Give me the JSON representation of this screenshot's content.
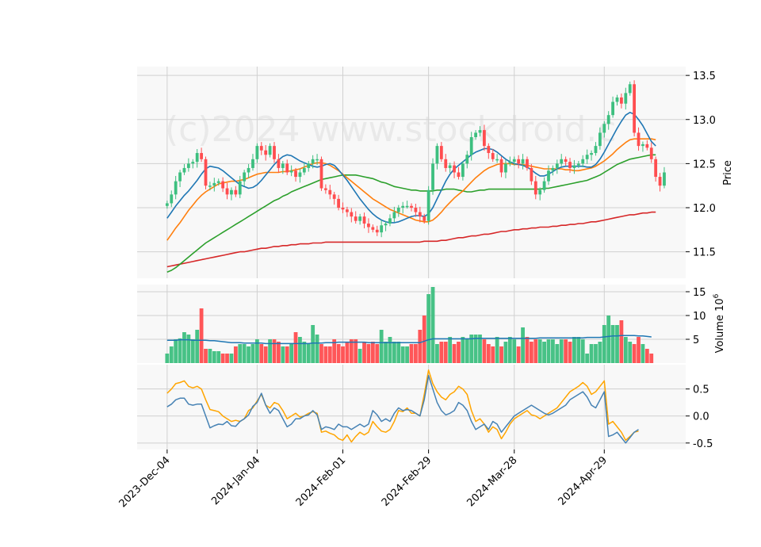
{
  "watermark": "(c)2024 www.stockdroid.c",
  "chart_data": {
    "type": "candlestick",
    "price_axis": {
      "label": "Price",
      "ticks": [
        "11.5",
        "12.0",
        "12.5",
        "13.0",
        "13.5"
      ],
      "tick_values": [
        11.5,
        12.0,
        12.5,
        13.0,
        13.5
      ],
      "ylim": [
        11.2,
        13.6
      ]
    },
    "volume_axis": {
      "label": "Volume  10",
      "exponent": "6",
      "ticks": [
        "5",
        "10",
        "15"
      ],
      "tick_values": [
        5,
        10,
        15
      ],
      "ylim": [
        0,
        16.5
      ]
    },
    "oscillator_axis": {
      "ticks": [
        "0.5",
        "0.0",
        "-0.5"
      ],
      "tick_values": [
        0.5,
        0.0,
        -0.5
      ],
      "ylim": [
        -0.62,
        0.95
      ]
    },
    "x_ticks": [
      {
        "label": "2023-Dec-04",
        "index": 0
      },
      {
        "label": "2024-Jan-04",
        "index": 21
      },
      {
        "label": "2024-Feb-01",
        "index": 41
      },
      {
        "label": "2024-Feb-29",
        "index": 61
      },
      {
        "label": "2024-Mar-28",
        "index": 81
      },
      {
        "label": "2024-Apr-29",
        "index": 102
      }
    ],
    "x_range": [
      -7,
      121
    ],
    "grid": true,
    "colors": {
      "up": "#3dbf7f",
      "down": "#ff4d4f",
      "ma_fast": "#1f77b4",
      "ma_mid": "#ff7f0e",
      "ma_slow": "#2ca02c",
      "ma_long": "#d62728",
      "osc_1": "#4682b4",
      "osc_2": "#ffa500"
    },
    "closes": [
      12.05,
      12.15,
      12.3,
      12.4,
      12.45,
      12.5,
      12.52,
      12.62,
      12.55,
      12.25,
      12.25,
      12.28,
      12.3,
      12.22,
      12.15,
      12.2,
      12.15,
      12.3,
      12.4,
      12.45,
      12.55,
      12.7,
      12.65,
      12.6,
      12.7,
      12.55,
      12.45,
      12.5,
      12.4,
      12.42,
      12.35,
      12.4,
      12.45,
      12.5,
      12.55,
      12.55,
      12.22,
      12.2,
      12.15,
      12.1,
      12.0,
      11.98,
      11.95,
      11.9,
      11.85,
      11.9,
      11.82,
      11.78,
      11.75,
      11.72,
      11.8,
      11.82,
      11.88,
      11.95,
      12.0,
      12.02,
      12.02,
      12.0,
      11.95,
      11.9,
      11.85,
      12.2,
      12.5,
      12.7,
      12.55,
      12.45,
      12.48,
      12.4,
      12.35,
      12.5,
      12.6,
      12.8,
      12.85,
      12.88,
      12.7,
      12.62,
      12.55,
      12.55,
      12.4,
      12.5,
      12.52,
      12.55,
      12.5,
      12.55,
      12.45,
      12.3,
      12.15,
      12.2,
      12.3,
      12.42,
      12.45,
      12.5,
      12.55,
      12.52,
      12.45,
      12.48,
      12.5,
      12.55,
      12.6,
      12.62,
      12.7,
      12.85,
      12.95,
      13.05,
      13.2,
      13.25,
      13.18,
      13.3,
      13.4,
      12.85,
      12.7,
      12.72,
      12.68,
      12.55,
      12.35,
      12.25,
      12.4
    ],
    "volumes": [
      2.0,
      3.5,
      5.0,
      5.2,
      6.5,
      6.0,
      5.0,
      7.0,
      11.5,
      3.0,
      3.0,
      2.5,
      2.5,
      2.0,
      2.0,
      2.0,
      3.5,
      4.0,
      4.0,
      3.5,
      4.0,
      5.0,
      4.0,
      3.5,
      5.0,
      5.0,
      4.5,
      3.5,
      3.5,
      4.0,
      6.5,
      5.5,
      4.5,
      4.0,
      8.0,
      6.0,
      4.0,
      3.5,
      3.5,
      5.0,
      4.0,
      3.5,
      4.5,
      5.0,
      5.0,
      3.0,
      4.5,
      4.0,
      4.5,
      4.0,
      7.0,
      4.5,
      5.5,
      4.5,
      4.5,
      3.5,
      3.5,
      4.0,
      4.0,
      7.0,
      10.0,
      14.5,
      16.0,
      4.0,
      4.5,
      4.5,
      5.5,
      4.0,
      4.5,
      5.5,
      5.0,
      6.0,
      6.0,
      6.0,
      5.0,
      4.0,
      3.5,
      5.5,
      3.5,
      4.5,
      5.5,
      5.0,
      3.5,
      7.5,
      5.5,
      4.5,
      5.0,
      5.0,
      4.5,
      5.0,
      5.0,
      4.0,
      5.0,
      5.0,
      4.5,
      5.5,
      5.5,
      5.0,
      2.0,
      4.0,
      4.0,
      4.5,
      8.0,
      10.0,
      8.0,
      8.0,
      9.0,
      5.5,
      4.5,
      4.0,
      5.5,
      4.0,
      3.0,
      2.0
    ],
    "volume_ma": [
      4.8,
      4.8,
      4.8,
      4.9,
      4.9,
      4.9,
      4.8,
      4.8,
      4.8,
      4.8,
      4.7,
      4.7,
      4.6,
      4.5,
      4.4,
      4.3,
      4.3,
      4.3,
      4.2,
      4.2,
      4.2,
      4.2,
      4.2,
      4.1,
      4.1,
      4.1,
      4.1,
      4.1,
      4.1,
      4.1,
      4.1,
      4.1,
      4.1,
      4.1,
      4.2,
      4.2,
      4.2,
      4.3,
      4.3,
      4.3,
      4.4,
      4.4,
      4.4,
      4.4,
      4.4,
      4.4,
      4.4,
      4.3,
      4.3,
      4.3,
      4.3,
      4.3,
      4.3,
      4.3,
      4.3,
      4.3,
      4.3,
      4.3,
      4.3,
      4.3,
      4.6,
      4.9,
      5.1,
      5.1,
      5.1,
      5.1,
      5.1,
      5.1,
      5.1,
      5.1,
      5.1,
      5.1,
      5.2,
      5.2,
      5.2,
      5.2,
      5.2,
      5.2,
      5.2,
      5.2,
      5.2,
      5.2,
      5.2,
      5.2,
      5.2,
      5.2,
      5.2,
      5.3,
      5.3,
      5.3,
      5.3,
      5.3,
      5.3,
      5.3,
      5.3,
      5.3,
      5.3,
      5.3,
      5.4,
      5.4,
      5.4,
      5.4,
      5.5,
      5.6,
      5.7,
      5.7,
      5.8,
      5.8,
      5.8,
      5.8,
      5.7,
      5.7,
      5.6,
      5.5
    ],
    "ma_fast": [
      11.88,
      11.95,
      12.02,
      12.08,
      12.14,
      12.19,
      12.25,
      12.31,
      12.38,
      12.44,
      12.47,
      12.46,
      12.45,
      12.42,
      12.38,
      12.34,
      12.3,
      12.26,
      12.24,
      12.22,
      12.23,
      12.26,
      12.31,
      12.37,
      12.43,
      12.49,
      12.54,
      12.58,
      12.6,
      12.59,
      12.56,
      12.53,
      12.51,
      12.49,
      12.47,
      12.46,
      12.47,
      12.49,
      12.5,
      12.48,
      12.43,
      12.37,
      12.31,
      12.24,
      12.17,
      12.1,
      12.04,
      11.98,
      11.93,
      11.89,
      11.86,
      11.84,
      11.83,
      11.83,
      11.84,
      11.86,
      11.88,
      11.9,
      11.91,
      11.91,
      11.9,
      11.93,
      12.0,
      12.1,
      12.2,
      12.3,
      12.38,
      12.44,
      12.48,
      12.52,
      12.56,
      12.6,
      12.63,
      12.65,
      12.67,
      12.67,
      12.66,
      12.63,
      12.59,
      12.55,
      12.52,
      12.5,
      12.49,
      12.48,
      12.46,
      12.43,
      12.39,
      12.36,
      12.36,
      12.38,
      12.41,
      12.44,
      12.46,
      12.47,
      12.47,
      12.47,
      12.47,
      12.47,
      12.46,
      12.46,
      12.49,
      12.55,
      12.63,
      12.72,
      12.81,
      12.9,
      12.98,
      13.05,
      13.08,
      13.06,
      13.0,
      12.93,
      12.84,
      12.75,
      12.7
    ],
    "ma_mid": [
      11.63,
      11.7,
      11.77,
      11.83,
      11.9,
      11.97,
      12.03,
      12.09,
      12.14,
      12.18,
      12.21,
      12.24,
      12.27,
      12.28,
      12.29,
      12.3,
      12.3,
      12.31,
      12.32,
      12.34,
      12.36,
      12.38,
      12.39,
      12.4,
      12.4,
      12.4,
      12.4,
      12.41,
      12.41,
      12.42,
      12.43,
      12.44,
      12.46,
      12.48,
      12.5,
      12.51,
      12.51,
      12.5,
      12.48,
      12.45,
      12.42,
      12.38,
      12.34,
      12.3,
      12.26,
      12.22,
      12.18,
      12.14,
      12.1,
      12.07,
      12.04,
      12.01,
      11.98,
      11.96,
      11.94,
      11.92,
      11.9,
      11.88,
      11.86,
      11.85,
      11.84,
      11.84,
      11.86,
      11.9,
      11.95,
      12.01,
      12.06,
      12.11,
      12.15,
      12.19,
      12.24,
      12.29,
      12.34,
      12.38,
      12.42,
      12.45,
      12.47,
      12.49,
      12.5,
      12.5,
      12.5,
      12.49,
      12.49,
      12.49,
      12.48,
      12.47,
      12.46,
      12.45,
      12.44,
      12.44,
      12.44,
      12.44,
      12.44,
      12.43,
      12.43,
      12.42,
      12.42,
      12.43,
      12.44,
      12.45,
      12.47,
      12.5,
      12.53,
      12.57,
      12.61,
      12.66,
      12.7,
      12.74,
      12.77,
      12.78,
      12.78,
      12.78,
      12.78,
      12.78,
      12.77
    ],
    "ma_slow": [
      11.27,
      11.29,
      11.32,
      11.36,
      11.4,
      11.44,
      11.48,
      11.52,
      11.56,
      11.6,
      11.63,
      11.66,
      11.69,
      11.72,
      11.75,
      11.78,
      11.81,
      11.84,
      11.87,
      11.9,
      11.93,
      11.96,
      11.99,
      12.02,
      12.05,
      12.08,
      12.1,
      12.13,
      12.15,
      12.18,
      12.2,
      12.22,
      12.24,
      12.26,
      12.28,
      12.3,
      12.32,
      12.33,
      12.34,
      12.35,
      12.36,
      12.37,
      12.37,
      12.37,
      12.37,
      12.36,
      12.35,
      12.34,
      12.33,
      12.31,
      12.29,
      12.28,
      12.26,
      12.24,
      12.23,
      12.22,
      12.21,
      12.2,
      12.2,
      12.19,
      12.19,
      12.19,
      12.19,
      12.2,
      12.2,
      12.21,
      12.21,
      12.21,
      12.2,
      12.19,
      12.18,
      12.18,
      12.19,
      12.2,
      12.2,
      12.21,
      12.21,
      12.21,
      12.21,
      12.21,
      12.21,
      12.21,
      12.21,
      12.21,
      12.21,
      12.21,
      12.21,
      12.21,
      12.22,
      12.22,
      12.23,
      12.24,
      12.25,
      12.26,
      12.27,
      12.28,
      12.29,
      12.3,
      12.31,
      12.33,
      12.35,
      12.37,
      12.4,
      12.43,
      12.46,
      12.49,
      12.51,
      12.53,
      12.55,
      12.56,
      12.57,
      12.58,
      12.59,
      12.6,
      12.6
    ],
    "ma_long": [
      11.33,
      11.34,
      11.35,
      11.36,
      11.37,
      11.38,
      11.39,
      11.4,
      11.41,
      11.42,
      11.43,
      11.44,
      11.45,
      11.46,
      11.47,
      11.48,
      11.49,
      11.5,
      11.5,
      11.51,
      11.52,
      11.53,
      11.54,
      11.54,
      11.55,
      11.56,
      11.56,
      11.57,
      11.57,
      11.58,
      11.58,
      11.59,
      11.59,
      11.59,
      11.6,
      11.6,
      11.6,
      11.61,
      11.61,
      11.61,
      11.61,
      11.61,
      11.61,
      11.61,
      11.61,
      11.61,
      11.61,
      11.61,
      11.61,
      11.61,
      11.61,
      11.61,
      11.61,
      11.61,
      11.61,
      11.61,
      11.61,
      11.61,
      11.61,
      11.61,
      11.62,
      11.62,
      11.62,
      11.62,
      11.63,
      11.63,
      11.64,
      11.65,
      11.66,
      11.66,
      11.67,
      11.68,
      11.68,
      11.69,
      11.7,
      11.7,
      11.71,
      11.72,
      11.73,
      11.73,
      11.74,
      11.75,
      11.75,
      11.76,
      11.76,
      11.77,
      11.77,
      11.78,
      11.78,
      11.78,
      11.79,
      11.79,
      11.8,
      11.8,
      11.81,
      11.81,
      11.82,
      11.82,
      11.83,
      11.84,
      11.84,
      11.85,
      11.86,
      11.87,
      11.88,
      11.89,
      11.9,
      11.91,
      11.92,
      11.92,
      11.93,
      11.94,
      11.94,
      11.95,
      11.95
    ],
    "osc_1": [
      0.17,
      0.22,
      0.3,
      0.33,
      0.33,
      0.22,
      0.2,
      0.22,
      0.22,
      0.0,
      -0.22,
      -0.18,
      -0.15,
      -0.16,
      -0.1,
      -0.18,
      -0.19,
      -0.1,
      -0.05,
      0.02,
      0.18,
      0.25,
      0.42,
      0.2,
      0.05,
      0.15,
      0.1,
      -0.05,
      -0.2,
      -0.15,
      -0.05,
      -0.05,
      0.0,
      0.02,
      0.1,
      0.02,
      -0.25,
      -0.2,
      -0.22,
      -0.25,
      -0.15,
      -0.2,
      -0.2,
      -0.25,
      -0.2,
      -0.15,
      -0.2,
      -0.15,
      0.1,
      0.02,
      -0.1,
      -0.05,
      -0.1,
      0.05,
      0.15,
      0.1,
      0.12,
      0.1,
      0.05,
      0.0,
      0.3,
      0.75,
      0.5,
      0.25,
      0.1,
      0.02,
      0.05,
      0.1,
      0.25,
      0.2,
      0.1,
      -0.1,
      -0.25,
      -0.2,
      -0.15,
      -0.25,
      -0.1,
      -0.15,
      -0.3,
      -0.2,
      -0.1,
      0.0,
      0.05,
      0.1,
      0.15,
      0.2,
      0.15,
      0.1,
      0.05,
      0.02,
      0.05,
      0.1,
      0.15,
      0.2,
      0.3,
      0.35,
      0.4,
      0.45,
      0.35,
      0.2,
      0.15,
      0.3,
      0.45,
      -0.38,
      -0.35,
      -0.3,
      -0.4,
      -0.5,
      -0.4,
      -0.3,
      -0.25
    ],
    "osc_2": [
      0.42,
      0.5,
      0.6,
      0.62,
      0.65,
      0.55,
      0.52,
      0.55,
      0.5,
      0.3,
      0.12,
      0.1,
      0.08,
      0.0,
      -0.05,
      -0.1,
      -0.08,
      -0.1,
      -0.05,
      0.1,
      0.15,
      0.28,
      0.4,
      0.2,
      0.15,
      0.25,
      0.22,
      0.1,
      -0.05,
      0.0,
      0.05,
      -0.02,
      0.0,
      0.05,
      0.08,
      0.05,
      -0.3,
      -0.28,
      -0.32,
      -0.35,
      -0.42,
      -0.45,
      -0.35,
      -0.48,
      -0.38,
      -0.3,
      -0.35,
      -0.3,
      -0.1,
      -0.2,
      -0.28,
      -0.3,
      -0.25,
      -0.1,
      0.1,
      0.08,
      0.15,
      0.05,
      0.05,
      0.0,
      0.4,
      0.85,
      0.6,
      0.45,
      0.35,
      0.3,
      0.4,
      0.45,
      0.55,
      0.5,
      0.4,
      0.1,
      -0.1,
      -0.05,
      -0.15,
      -0.3,
      -0.2,
      -0.25,
      -0.42,
      -0.3,
      -0.15,
      -0.05,
      0.0,
      0.05,
      0.1,
      0.02,
      0.0,
      -0.05,
      0.0,
      0.05,
      0.1,
      0.15,
      0.25,
      0.35,
      0.45,
      0.5,
      0.55,
      0.62,
      0.55,
      0.4,
      0.45,
      0.55,
      0.65,
      -0.15,
      -0.1,
      -0.2,
      -0.3,
      -0.45,
      -0.38,
      -0.3,
      -0.28
    ]
  }
}
